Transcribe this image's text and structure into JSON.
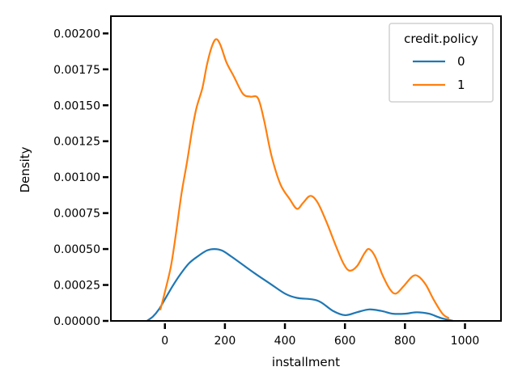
{
  "chart_data": {
    "type": "line",
    "title": "",
    "xlabel": "installment",
    "ylabel": "Density",
    "xlim": [
      -180,
      1120
    ],
    "ylim": [
      0,
      0.00212
    ],
    "x_ticks": [
      0,
      200,
      400,
      600,
      800,
      1000
    ],
    "x_tick_labels": [
      "0",
      "200",
      "400",
      "600",
      "800",
      "1000"
    ],
    "y_ticks": [
      0,
      0.00025,
      0.0005,
      0.00075,
      0.001,
      0.00125,
      0.0015,
      0.00175,
      0.002
    ],
    "y_tick_labels": [
      "0.00000",
      "0.00025",
      "0.00050",
      "0.00075",
      "0.00100",
      "0.00125",
      "0.00150",
      "0.00175",
      "0.00200"
    ],
    "grid": false,
    "legend": {
      "title": "credit.policy",
      "placement": "top-right"
    },
    "series": [
      {
        "name": "0",
        "color": "#1f77b4",
        "points": [
          [
            -60,
            0.0
          ],
          [
            -40,
            3e-05
          ],
          [
            -20,
            8e-05
          ],
          [
            0,
            0.00015
          ],
          [
            25,
            0.00024
          ],
          [
            50,
            0.00032
          ],
          [
            80,
            0.0004
          ],
          [
            110,
            0.00045
          ],
          [
            140,
            0.00049
          ],
          [
            165,
            0.0005
          ],
          [
            190,
            0.00049
          ],
          [
            220,
            0.00045
          ],
          [
            260,
            0.00039
          ],
          [
            300,
            0.00033
          ],
          [
            350,
            0.00026
          ],
          [
            400,
            0.00019
          ],
          [
            440,
            0.00016
          ],
          [
            490,
            0.00015
          ],
          [
            520,
            0.00013
          ],
          [
            560,
            7e-05
          ],
          [
            600,
            4e-05
          ],
          [
            640,
            6e-05
          ],
          [
            680,
            8e-05
          ],
          [
            720,
            7e-05
          ],
          [
            760,
            5e-05
          ],
          [
            800,
            5e-05
          ],
          [
            840,
            6e-05
          ],
          [
            880,
            5e-05
          ],
          [
            920,
            2e-05
          ],
          [
            960,
            0.0
          ]
        ]
      },
      {
        "name": "1",
        "color": "#ff7f0e",
        "points": [
          [
            -15,
            8e-05
          ],
          [
            0,
            0.0002
          ],
          [
            20,
            0.00038
          ],
          [
            35,
            0.00058
          ],
          [
            55,
            0.00088
          ],
          [
            75,
            0.00112
          ],
          [
            90,
            0.00132
          ],
          [
            105,
            0.00148
          ],
          [
            125,
            0.00162
          ],
          [
            140,
            0.00178
          ],
          [
            155,
            0.0019
          ],
          [
            170,
            0.00196
          ],
          [
            185,
            0.00192
          ],
          [
            205,
            0.0018
          ],
          [
            230,
            0.0017
          ],
          [
            260,
            0.00158
          ],
          [
            285,
            0.00156
          ],
          [
            310,
            0.00155
          ],
          [
            330,
            0.0014
          ],
          [
            355,
            0.00115
          ],
          [
            385,
            0.00095
          ],
          [
            415,
            0.00085
          ],
          [
            440,
            0.00078
          ],
          [
            460,
            0.00082
          ],
          [
            485,
            0.00087
          ],
          [
            510,
            0.00082
          ],
          [
            540,
            0.00068
          ],
          [
            570,
            0.00052
          ],
          [
            595,
            0.0004
          ],
          [
            615,
            0.00035
          ],
          [
            640,
            0.00038
          ],
          [
            665,
            0.00047
          ],
          [
            680,
            0.0005
          ],
          [
            700,
            0.00045
          ],
          [
            725,
            0.00032
          ],
          [
            750,
            0.00022
          ],
          [
            770,
            0.00019
          ],
          [
            795,
            0.00024
          ],
          [
            825,
            0.00031
          ],
          [
            845,
            0.00031
          ],
          [
            870,
            0.00025
          ],
          [
            895,
            0.00015
          ],
          [
            925,
            5e-05
          ],
          [
            945,
            2e-05
          ]
        ]
      }
    ]
  }
}
